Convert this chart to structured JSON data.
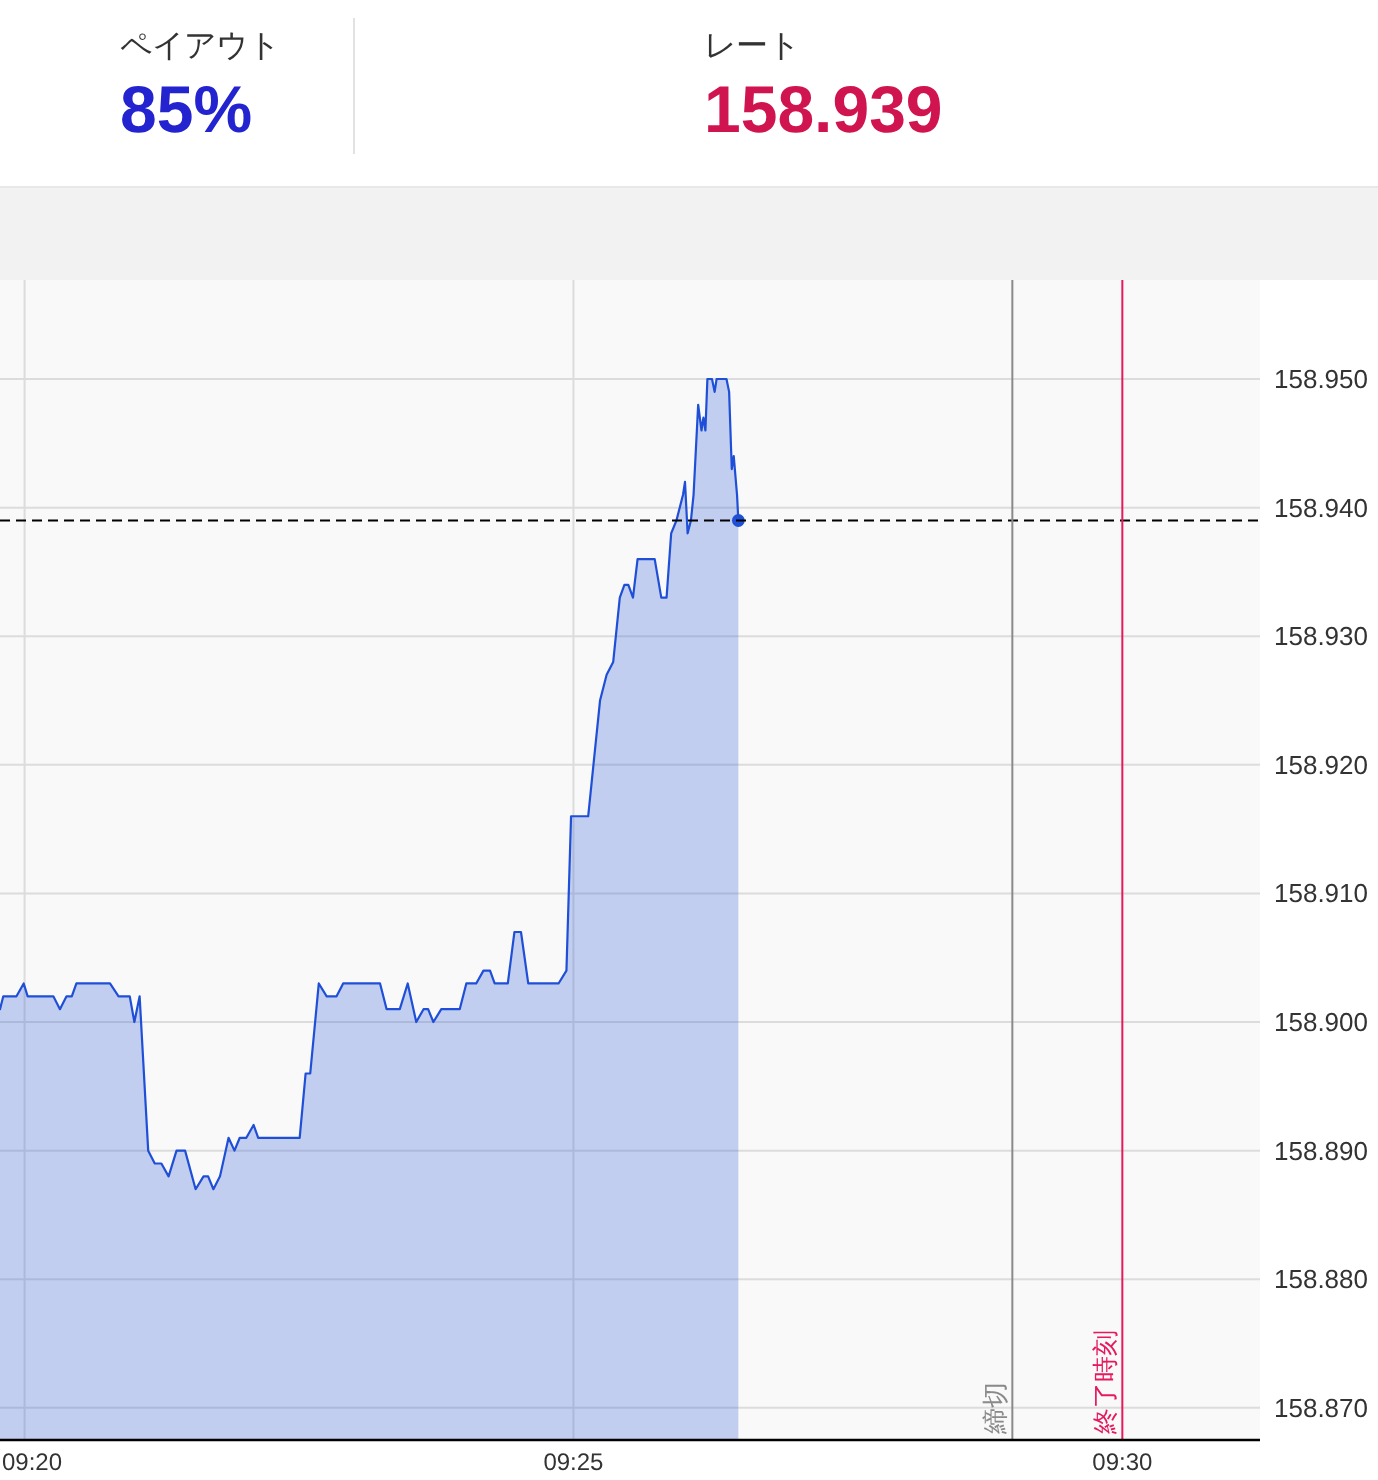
{
  "chart_data": [
    {
      "type": "other",
      "annotations": [
        "ペイアウト",
        "85%",
        "レート",
        "158.939"
      ],
      "colors": [
        "#333333",
        "#2323cf",
        "#333333",
        "#cf1450"
      ]
    },
    {
      "type": "area",
      "series": [
        {
          "color": "#1f4fd6",
          "x": [
            9.3296,
            9.3301,
            9.3321,
            9.3332,
            9.3338,
            9.3377,
            9.3387,
            9.3397,
            9.3405,
            9.3412,
            9.3463,
            9.3476,
            9.3493,
            9.35,
            9.3508,
            9.3521,
            9.3531,
            9.3541,
            9.3552,
            9.3564,
            9.3577,
            9.3593,
            9.3605,
            9.3612,
            9.362,
            9.363,
            9.3643,
            9.3652,
            9.366,
            9.367,
            9.3681,
            9.3688,
            9.3751,
            9.376,
            9.3767,
            9.378,
            9.3792,
            9.3807,
            9.3817,
            9.3873,
            9.3883,
            9.3903,
            9.3915,
            9.3928,
            9.3939,
            9.3946,
            9.3954,
            9.3966,
            9.3994,
            9.4004,
            9.4019,
            9.403,
            9.404,
            9.4047,
            9.4067,
            9.4077,
            9.4087,
            9.4098,
            9.4144,
            9.4156,
            9.4163,
            9.4189,
            9.4197,
            9.4207,
            9.4217,
            9.4227,
            9.4237,
            9.4244,
            9.425,
            9.4257,
            9.4264,
            9.429,
            9.43,
            9.4308,
            9.4315,
            9.4323,
            9.4333,
            9.4336,
            9.434,
            9.4345,
            9.4349,
            9.4356,
            9.4361,
            9.4364,
            9.4367,
            9.437,
            9.4377,
            9.4381,
            9.4384,
            9.4399,
            9.4403,
            9.4407,
            9.441,
            9.4415,
            9.4417
          ],
          "values": [
            158.901,
            158.902,
            158.902,
            158.903,
            158.902,
            158.902,
            158.901,
            158.902,
            158.902,
            158.903,
            158.903,
            158.902,
            158.902,
            158.9,
            158.902,
            158.89,
            158.889,
            158.889,
            158.888,
            158.89,
            158.89,
            158.887,
            158.888,
            158.888,
            158.887,
            158.888,
            158.891,
            158.89,
            158.891,
            158.891,
            158.892,
            158.891,
            158.891,
            158.896,
            158.896,
            158.903,
            158.902,
            158.902,
            158.903,
            158.903,
            158.901,
            158.901,
            158.903,
            158.9,
            158.901,
            158.901,
            158.9,
            158.901,
            158.901,
            158.903,
            158.903,
            158.904,
            158.904,
            158.903,
            158.903,
            158.907,
            158.907,
            158.903,
            158.903,
            158.904,
            158.916,
            158.916,
            158.92,
            158.925,
            158.927,
            158.928,
            158.933,
            158.934,
            158.934,
            158.933,
            158.936,
            158.936,
            158.933,
            158.933,
            158.938,
            158.939,
            158.941,
            158.942,
            158.938,
            158.939,
            158.941,
            158.948,
            158.946,
            158.947,
            158.946,
            158.95,
            158.95,
            158.949,
            158.95,
            158.95,
            158.949,
            158.943,
            158.944,
            158.941,
            158.939
          ]
        },
        {
          "type": "scatter",
          "color": "#1f4fd6",
          "x": [
            9.4417
          ],
          "values": [
            158.939
          ]
        }
      ],
      "xlim": [
        9.3296,
        9.5209
      ],
      "ylim": [
        158.8675,
        158.9577
      ],
      "xticks": [
        {
          "value": 9.333333,
          "label": "09:20"
        },
        {
          "value": 9.416667,
          "label": "09:25"
        },
        {
          "value": 9.5,
          "label": "09:30"
        }
      ],
      "yticks": [
        {
          "value": 158.87,
          "label": "158.870"
        },
        {
          "value": 158.88,
          "label": "158.880"
        },
        {
          "value": 158.89,
          "label": "158.890"
        },
        {
          "value": 158.9,
          "label": "158.900"
        },
        {
          "value": 158.91,
          "label": "158.910"
        },
        {
          "value": 158.92,
          "label": "158.920"
        },
        {
          "value": 158.93,
          "label": "158.930"
        },
        {
          "value": 158.94,
          "label": "158.940"
        },
        {
          "value": 158.95,
          "label": "158.950"
        }
      ],
      "grid": true,
      "ref_lines": [
        {
          "axis": "y",
          "value": 158.939,
          "color": "#000000",
          "line_style": "dashed"
        },
        {
          "axis": "x",
          "value": 9.4833,
          "label": "締切",
          "color": "#8a8a8a"
        },
        {
          "axis": "x",
          "value": 9.5,
          "label": "終了時刻",
          "color": "#e5195c"
        }
      ]
    }
  ]
}
